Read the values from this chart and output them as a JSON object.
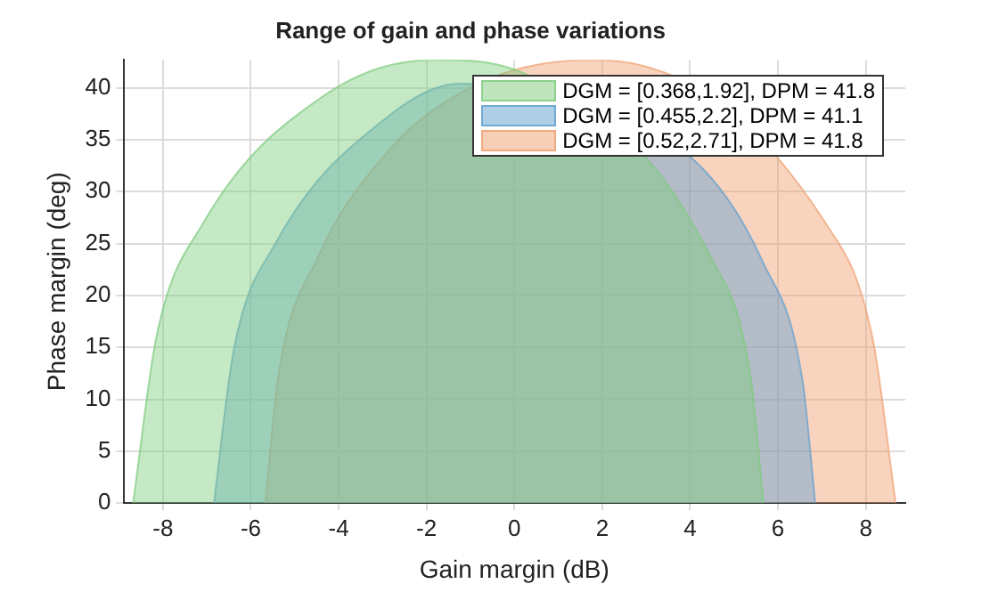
{
  "chart_data": {
    "type": "area",
    "title": "Range of gain and phase variations",
    "xlabel": "Gain margin (dB)",
    "ylabel": "Phase margin (deg)",
    "xlim": [
      -8.9,
      8.9
    ],
    "xticks": [
      -8,
      -6,
      -4,
      -2,
      0,
      2,
      4,
      6,
      8
    ],
    "ylim": [
      0,
      42.7
    ],
    "yticks": [
      0,
      5,
      10,
      15,
      20,
      25,
      30,
      35,
      40
    ],
    "grid": true,
    "legend": "top right",
    "series": [
      {
        "name": "DGM = [0.368,1.92], DPM = 41.8",
        "color": "#7fcc7f",
        "x": [
          -8.68,
          -8.15,
          -7.08,
          -4.28,
          -1.83,
          0.1,
          1.62,
          2.81,
          4.47,
          5.38,
          5.67
        ],
        "values": [
          0,
          16,
          27,
          39.4,
          42.7,
          41.6,
          null,
          null,
          23.7,
          12.1,
          0
        ]
      },
      {
        "name": "DGM = [0.455,2.2], DPM = 41.1",
        "color": "#5fa0d0",
        "x": [
          -6.84,
          -6.39,
          -5.44,
          -2.86,
          -1.26,
          -0.53,
          1.35,
          2.84,
          4.02,
          5.66,
          6.56,
          6.85
        ],
        "values": [
          0,
          14.7,
          25,
          37.3,
          40.4,
          null,
          null,
          null,
          33.3,
          23.2,
          11.8,
          0
        ]
      },
      {
        "name": "DGM = [0.52,2.71], DPM = 41.8",
        "color": "#f0a070",
        "x": [
          -5.67,
          -5.38,
          -4.47,
          -2.81,
          -1.62,
          -0.1,
          1.83,
          4.28,
          7.08,
          8.15,
          8.68
        ],
        "values": [
          0,
          12.1,
          23.7,
          34.2,
          38.5,
          41.6,
          42.7,
          null,
          27,
          16,
          0
        ]
      }
    ]
  }
}
